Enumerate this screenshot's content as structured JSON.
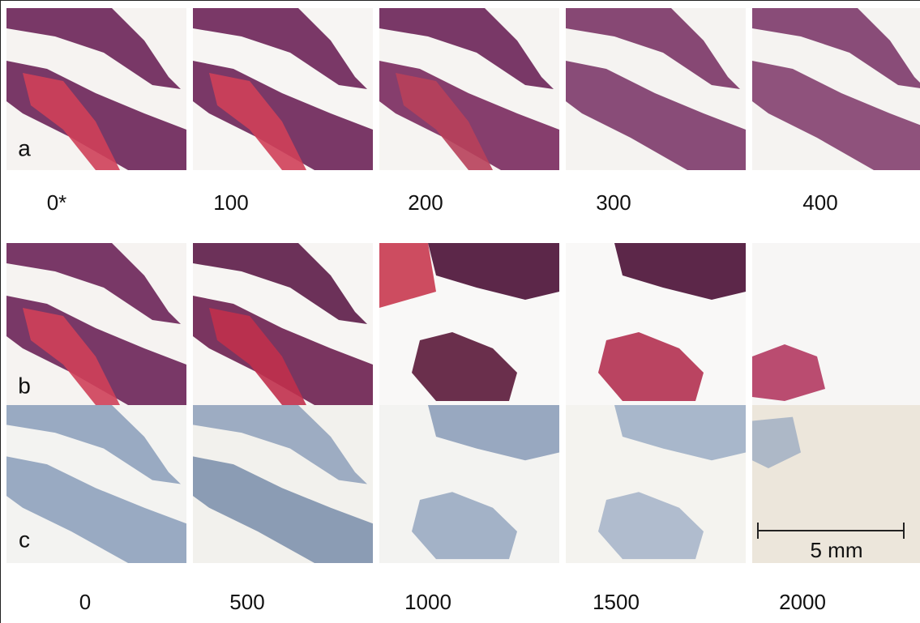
{
  "rows": [
    {
      "letter": "a",
      "labels": [
        "0*",
        "100",
        "200",
        "300",
        "400"
      ]
    },
    {
      "letter": "b",
      "labels": []
    },
    {
      "letter": "c",
      "labels": [
        "0",
        "500",
        "1000",
        "1500",
        "2000"
      ]
    }
  ],
  "scale_bar": "5 mm"
}
